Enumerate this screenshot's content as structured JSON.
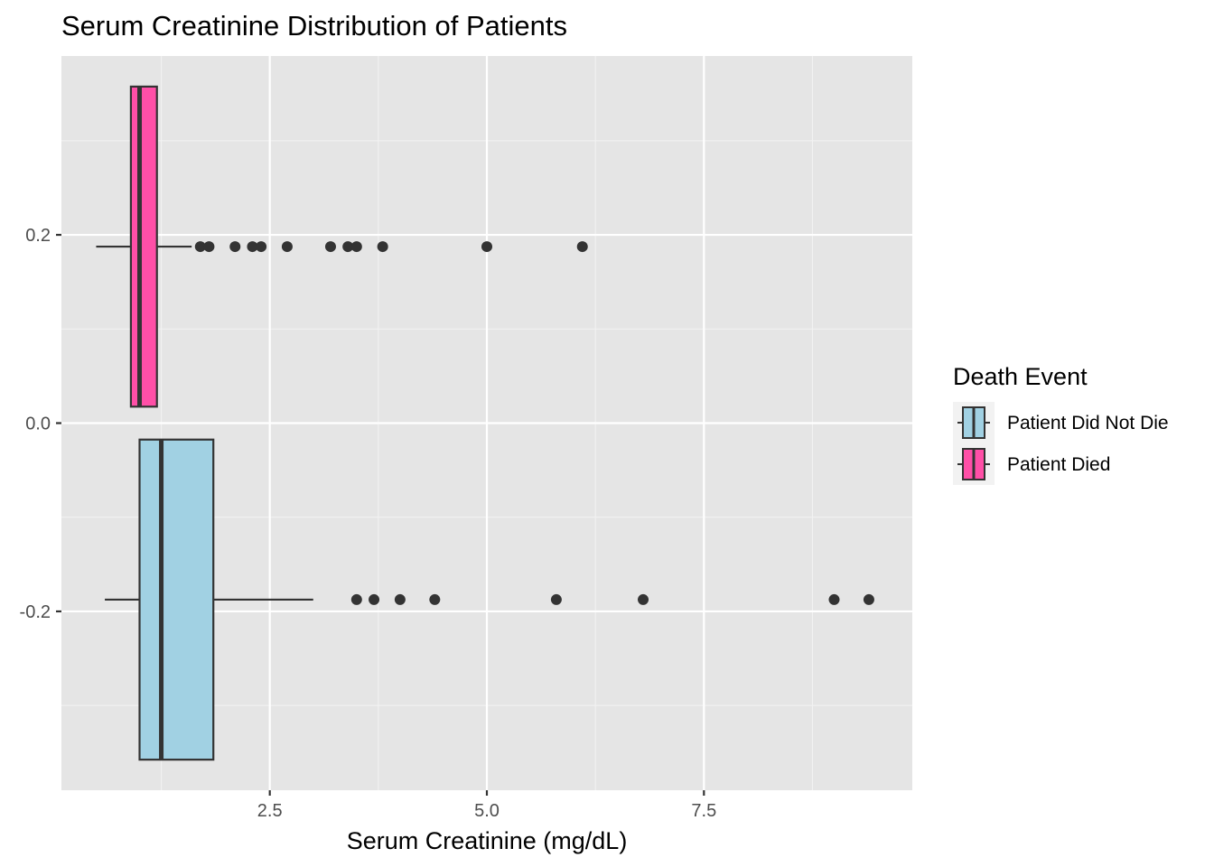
{
  "chart_data": {
    "type": "boxplot",
    "orientation": "horizontal",
    "title": "Serum Creatinine Distribution of Patients",
    "xlabel": "Serum Creatinine (mg/dL)",
    "ylabel": "",
    "xlim": [
      0.1,
      9.9
    ],
    "ylim": [
      -0.39,
      0.39
    ],
    "x_ticks": [
      2.5,
      5.0,
      7.5
    ],
    "x_tick_labels": [
      "2.5",
      "5.0",
      "7.5"
    ],
    "y_ticks": [
      0.2,
      0.0,
      -0.2
    ],
    "y_tick_labels": [
      "0.2",
      "0.0",
      "-0.2"
    ],
    "grid": true,
    "legend": {
      "title": "Death Event",
      "placement": "right",
      "entries": [
        "Patient Did Not Die",
        "Patient Died"
      ]
    },
    "series": [
      {
        "name": "Patient Did Not Die",
        "color": "#A1D1E3",
        "y_center": -0.1875,
        "y_range": [
          -0.3575,
          -0.0175
        ],
        "whisker_low": 0.6,
        "q1": 1.0,
        "median": 1.25,
        "q3": 1.85,
        "whisker_high": 3.0,
        "outliers": [
          3.5,
          3.7,
          4.0,
          4.4,
          5.8,
          6.8,
          9.0,
          9.4
        ]
      },
      {
        "name": "Patient Died",
        "color": "#FF4FA7",
        "y_center": 0.1875,
        "y_range": [
          0.0175,
          0.3575
        ],
        "whisker_low": 0.5,
        "q1": 0.9,
        "median": 1.0,
        "q3": 1.2,
        "whisker_high": 1.6,
        "outliers": [
          1.7,
          1.8,
          2.1,
          2.3,
          2.4,
          2.7,
          3.2,
          3.4,
          3.5,
          3.8,
          5.0,
          6.1
        ]
      }
    ]
  }
}
